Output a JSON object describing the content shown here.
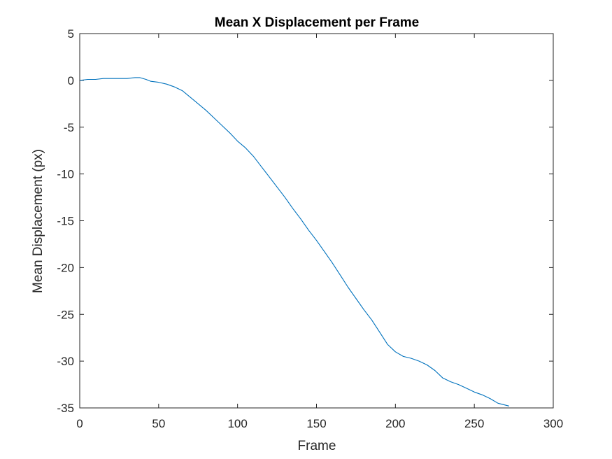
{
  "chart_data": {
    "type": "line",
    "title": "Mean X Displacement per Frame",
    "xlabel": "Frame",
    "ylabel": "Mean Displacement (px)",
    "xlim": [
      0,
      300
    ],
    "ylim": [
      -35,
      5
    ],
    "xticks": [
      0,
      50,
      100,
      150,
      200,
      250,
      300
    ],
    "yticks": [
      5,
      0,
      -5,
      -10,
      -15,
      -20,
      -25,
      -30,
      -35
    ],
    "grid": false,
    "line_color": "#0072bd",
    "series": [
      {
        "x": [
          0,
          5,
          10,
          15,
          20,
          25,
          30,
          35,
          38,
          42,
          45,
          50,
          55,
          60,
          65,
          70,
          75,
          80,
          85,
          90,
          95,
          100,
          105,
          110,
          115,
          120,
          125,
          130,
          135,
          140,
          145,
          150,
          155,
          160,
          165,
          170,
          175,
          180,
          185,
          190,
          195,
          200,
          205,
          210,
          215,
          220,
          225,
          230,
          235,
          240,
          245,
          250,
          255,
          260,
          265,
          272
        ],
        "y": [
          0.0,
          0.1,
          0.1,
          0.2,
          0.2,
          0.2,
          0.2,
          0.3,
          0.3,
          0.1,
          -0.1,
          -0.2,
          -0.4,
          -0.7,
          -1.1,
          -1.8,
          -2.5,
          -3.2,
          -4.0,
          -4.8,
          -5.6,
          -6.5,
          -7.2,
          -8.1,
          -9.2,
          -10.3,
          -11.4,
          -12.5,
          -13.7,
          -14.8,
          -16.0,
          -17.1,
          -18.3,
          -19.5,
          -20.8,
          -22.1,
          -23.3,
          -24.5,
          -25.6,
          -26.9,
          -28.2,
          -29.0,
          -29.5,
          -29.7,
          -30.0,
          -30.4,
          -31.0,
          -31.8,
          -32.2,
          -32.5,
          -32.9,
          -33.3,
          -33.6,
          -34.0,
          -34.5,
          -34.8
        ]
      }
    ]
  }
}
